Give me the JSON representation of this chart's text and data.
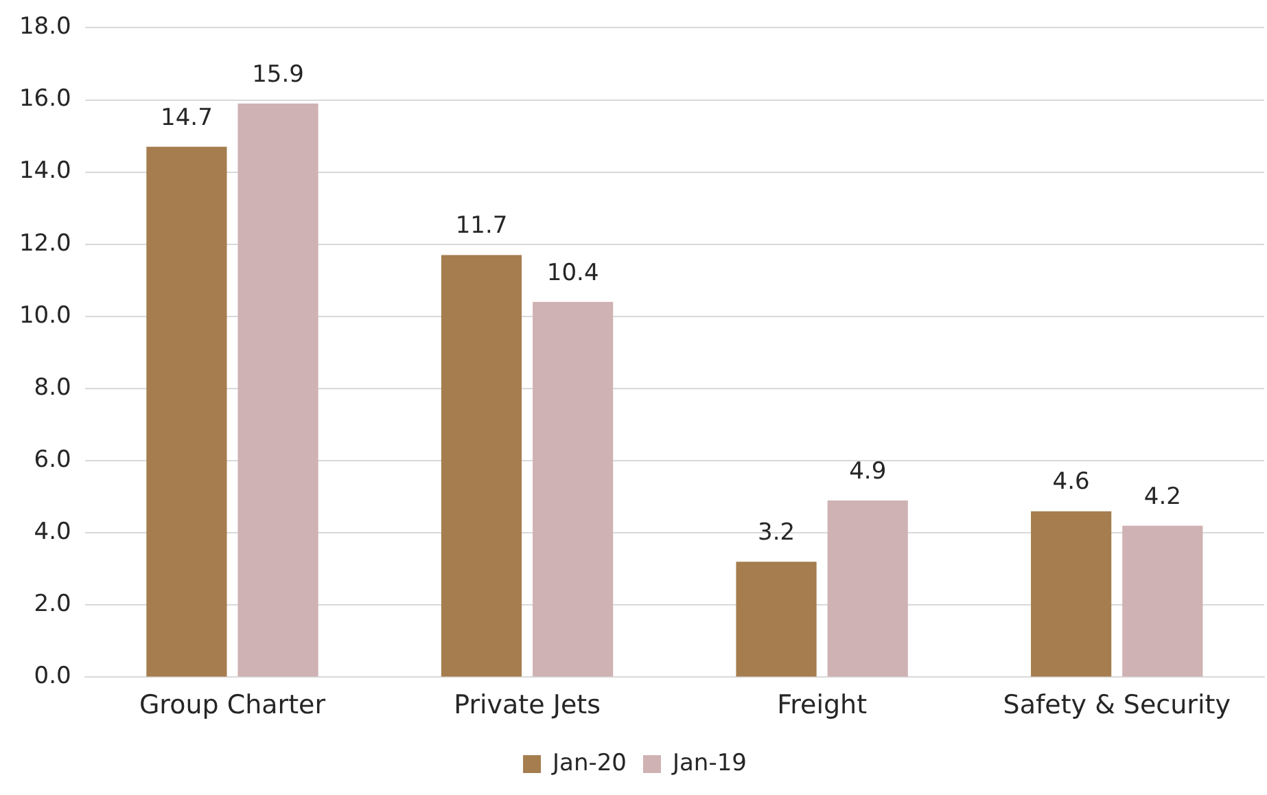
{
  "chart_data": {
    "type": "bar",
    "categories": [
      "Group Charter",
      "Private Jets",
      "Freight",
      "Safety & Security"
    ],
    "series": [
      {
        "name": "Jan-20",
        "color": "#a57d4e",
        "values": [
          14.7,
          11.7,
          3.2,
          4.6
        ]
      },
      {
        "name": "Jan-19",
        "color": "#cfb2b3",
        "values": [
          15.9,
          10.4,
          4.9,
          4.2
        ]
      }
    ],
    "ylim": [
      0,
      18
    ],
    "yticks": [
      {
        "value": 0,
        "label": "0.0"
      },
      {
        "value": 2,
        "label": "2.0"
      },
      {
        "value": 4,
        "label": "4.0"
      },
      {
        "value": 6,
        "label": "6.0"
      },
      {
        "value": 8,
        "label": "8.0"
      },
      {
        "value": 10,
        "label": "10.0"
      },
      {
        "value": 12,
        "label": "12.0"
      },
      {
        "value": 14,
        "label": "14.0"
      },
      {
        "value": 16,
        "label": "16.0"
      },
      {
        "value": 18,
        "label": "18.0"
      }
    ],
    "grid": "y",
    "legend": "bottom",
    "data_labels": true
  }
}
